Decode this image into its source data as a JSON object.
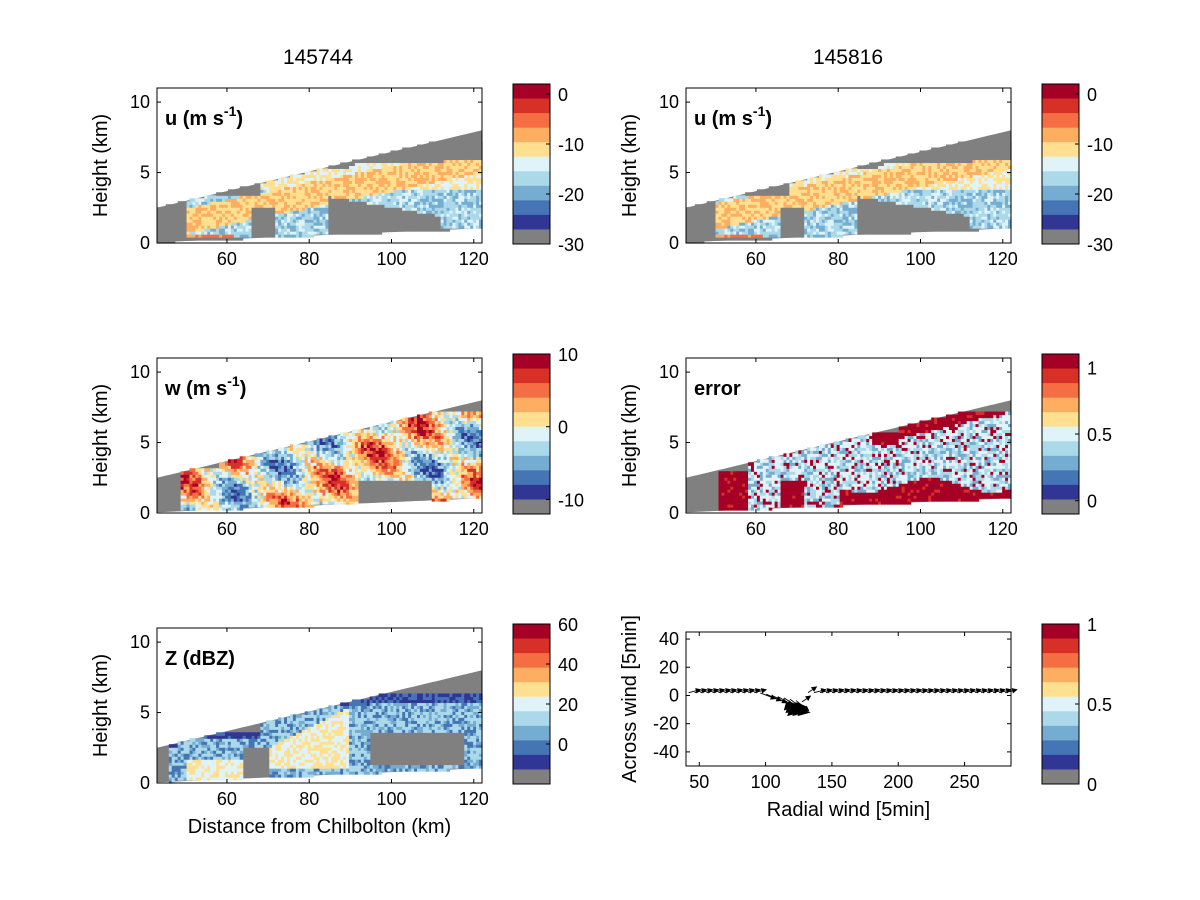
{
  "column_titles": [
    "145744",
    "145816"
  ],
  "colormap": [
    "#a50026",
    "#d73027",
    "#f46d43",
    "#fdae61",
    "#fee090",
    "#e0f3f8",
    "#abd9e9",
    "#74add1",
    "#4575b4",
    "#313695",
    "#808080"
  ],
  "colors": {
    "no_data": "#808080",
    "arrow": "#000000"
  },
  "chart_data": [
    {
      "id": "u-145744",
      "type": "heatmap",
      "column": "145744",
      "title": "u (m s-1)",
      "title_main": "u (m s",
      "title_sup": "-1",
      "title_end": ")",
      "xlabel": "",
      "ylabel": "Height (km)",
      "xlim": [
        43,
        122
      ],
      "ylim": [
        0,
        11
      ],
      "xticks": [
        60,
        80,
        100,
        120
      ],
      "yticks": [
        0,
        5,
        10
      ],
      "colorbar": {
        "ticks": [
          0,
          -10,
          -20,
          -30
        ],
        "range": [
          -30,
          2
        ]
      }
    },
    {
      "id": "u-145816",
      "type": "heatmap",
      "column": "145816",
      "title": "u (m s-1)",
      "title_main": "u (m s",
      "title_sup": "-1",
      "title_end": ")",
      "xlabel": "",
      "ylabel": "Height (km)",
      "xlim": [
        43,
        122
      ],
      "ylim": [
        0,
        11
      ],
      "xticks": [
        60,
        80,
        100,
        120
      ],
      "yticks": [
        0,
        5,
        10
      ],
      "colorbar": {
        "ticks": [
          0,
          -10,
          -20,
          -30
        ],
        "range": [
          -30,
          2
        ]
      }
    },
    {
      "id": "w-145744",
      "type": "heatmap",
      "column": "145744",
      "title": "w (m s-1)",
      "title_main": "w (m s",
      "title_sup": "-1",
      "title_end": ")",
      "xlabel": "",
      "ylabel": "Height (km)",
      "xlim": [
        43,
        122
      ],
      "ylim": [
        0,
        11
      ],
      "xticks": [
        60,
        80,
        100,
        120
      ],
      "yticks": [
        0,
        5,
        10
      ],
      "colorbar": {
        "ticks": [
          10,
          0,
          -10
        ],
        "range": [
          -12,
          10
        ]
      }
    },
    {
      "id": "error-145816",
      "type": "heatmap",
      "column": "145816",
      "title": "error",
      "xlabel": "",
      "ylabel": "Height (km)",
      "xlim": [
        43,
        122
      ],
      "ylim": [
        0,
        11
      ],
      "xticks": [
        60,
        80,
        100,
        120
      ],
      "yticks": [
        0,
        5,
        10
      ],
      "colorbar": {
        "ticks": [
          1,
          0.5,
          0
        ],
        "range": [
          -0.1,
          1.1
        ]
      }
    },
    {
      "id": "z-145744",
      "type": "heatmap",
      "column": "145744",
      "title": "Z (dBZ)",
      "xlabel": "Distance from Chilbolton (km)",
      "ylabel": "Height (km)",
      "xlim": [
        43,
        122
      ],
      "ylim": [
        0,
        11
      ],
      "xticks": [
        60,
        80,
        100,
        120
      ],
      "yticks": [
        0,
        5,
        10
      ],
      "colorbar": {
        "ticks": [
          60,
          40,
          20,
          0
        ],
        "range": [
          -20,
          60
        ]
      }
    },
    {
      "id": "quiver-145816",
      "type": "scatter",
      "column": "145816",
      "title": "",
      "xlabel": "Radial wind [5min]",
      "ylabel": "Across wind [5min]",
      "xlim": [
        40,
        285
      ],
      "ylim": [
        -50,
        45
      ],
      "xticks": [
        50,
        100,
        150,
        200,
        250
      ],
      "yticks": [
        40,
        20,
        0,
        -20,
        -40
      ],
      "colorbar": {
        "ticks": [
          1,
          0.5,
          0
        ],
        "range": [
          0,
          1
        ]
      }
    }
  ]
}
